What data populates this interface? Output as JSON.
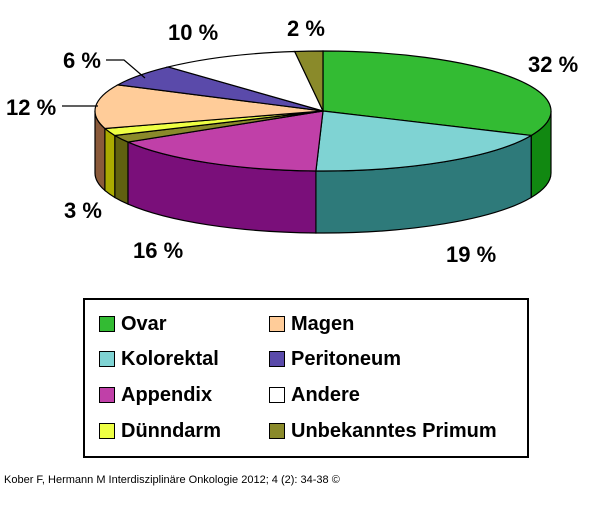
{
  "chart_data": {
    "type": "pie",
    "title": "",
    "slices": [
      {
        "label": "Ovar",
        "value": 32,
        "display": "32  %",
        "color": "#33bb33",
        "side_color": "#118811"
      },
      {
        "label": "Kolorektal",
        "value": 19,
        "display": "19 %",
        "color": "#7fd3d3",
        "side_color": "#2e7a7a"
      },
      {
        "label": "Appendix",
        "value": 16,
        "display": "16  %",
        "color": "#c040a8",
        "side_color": "#7a0f7a"
      },
      {
        "label": "Unbekanntes Primum",
        "value": 2,
        "display": "",
        "color": "#8a8a2a",
        "side_color": "#606010"
      },
      {
        "label": "Dünndarm",
        "value": 2,
        "display": "",
        "color": "#eeff44",
        "side_color": "#aaaa00"
      },
      {
        "label": "Magen",
        "value": 12,
        "display": "12 %",
        "color": "#ffcc99",
        "side_color": "#8a5a3a"
      },
      {
        "label": "Peritoneum",
        "value": 6,
        "display": "6 %",
        "color": "#5a4aaa",
        "side_color": "#2a1a6a"
      },
      {
        "label": "Andere",
        "value": 10,
        "display": "10 %",
        "color": "#ffffff",
        "side_color": "#bbbbbb"
      },
      {
        "label": "Unbekanntes Primum",
        "value": 2,
        "display": "2 %",
        "color": "#8a8a2a",
        "side_color": "#606010"
      }
    ],
    "extra_labels": [
      {
        "display": "3 %"
      }
    ],
    "legend": [
      {
        "label": "Ovar",
        "color": "#33bb33"
      },
      {
        "label": "Magen",
        "color": "#ffcc99"
      },
      {
        "label": "Kolorektal",
        "color": "#7fd3d3"
      },
      {
        "label": "Peritoneum",
        "color": "#5a4aaa"
      },
      {
        "label": "Appendix",
        "color": "#c040a8"
      },
      {
        "label": "Andere",
        "color": "#ffffff"
      },
      {
        "label": "Dünndarm",
        "color": "#eeff44"
      },
      {
        "label": "Unbekanntes Primum",
        "color": "#8a8a2a"
      }
    ],
    "legend_placement": "bottom"
  },
  "citation": "Kober F, Hermann M Interdisziplinäre Onkologie 2012; 4 (2): 34-38 ©"
}
